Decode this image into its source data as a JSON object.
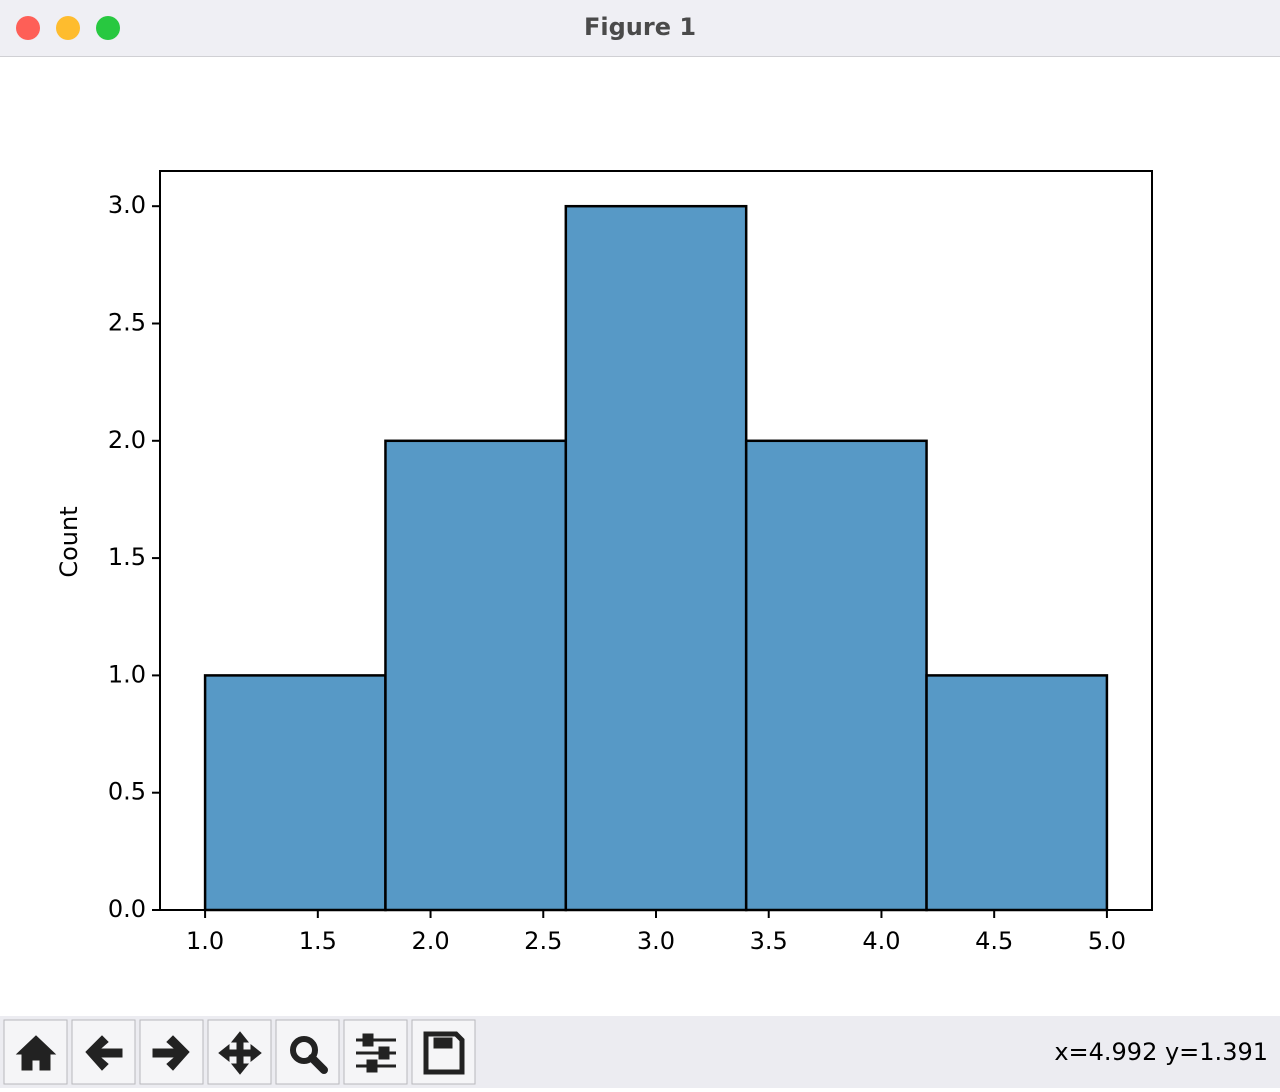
{
  "window": {
    "title": "Figure 1",
    "status": "x=4.992 y=1.391"
  },
  "chart_data": {
    "type": "histogram",
    "ylabel": "Count",
    "bins": [
      1.0,
      1.8,
      2.6,
      3.4,
      4.2,
      5.0
    ],
    "values": [
      1,
      2,
      3,
      2,
      1
    ],
    "color": "#5799c6",
    "edgecolor": "#000000",
    "xlim": [
      0.8,
      5.2
    ],
    "ylim": [
      0,
      3.15
    ],
    "xticks": [
      {
        "value": 1,
        "label": "1.0"
      },
      {
        "value": 1.5,
        "label": "1.5"
      },
      {
        "value": 2,
        "label": "2.0"
      },
      {
        "value": 2.5,
        "label": "2.5"
      },
      {
        "value": 3,
        "label": "3.0"
      },
      {
        "value": 3.5,
        "label": "3.5"
      },
      {
        "value": 4,
        "label": "4.0"
      },
      {
        "value": 4.5,
        "label": "4.5"
      },
      {
        "value": 5,
        "label": "5.0"
      }
    ],
    "yticks": [
      {
        "value": 0,
        "label": "0.0"
      },
      {
        "value": 0.5,
        "label": "0.5"
      },
      {
        "value": 1,
        "label": "1.0"
      },
      {
        "value": 1.5,
        "label": "1.5"
      },
      {
        "value": 2,
        "label": "2.0"
      },
      {
        "value": 2.5,
        "label": "2.5"
      },
      {
        "value": 3,
        "label": "3.0"
      }
    ]
  }
}
